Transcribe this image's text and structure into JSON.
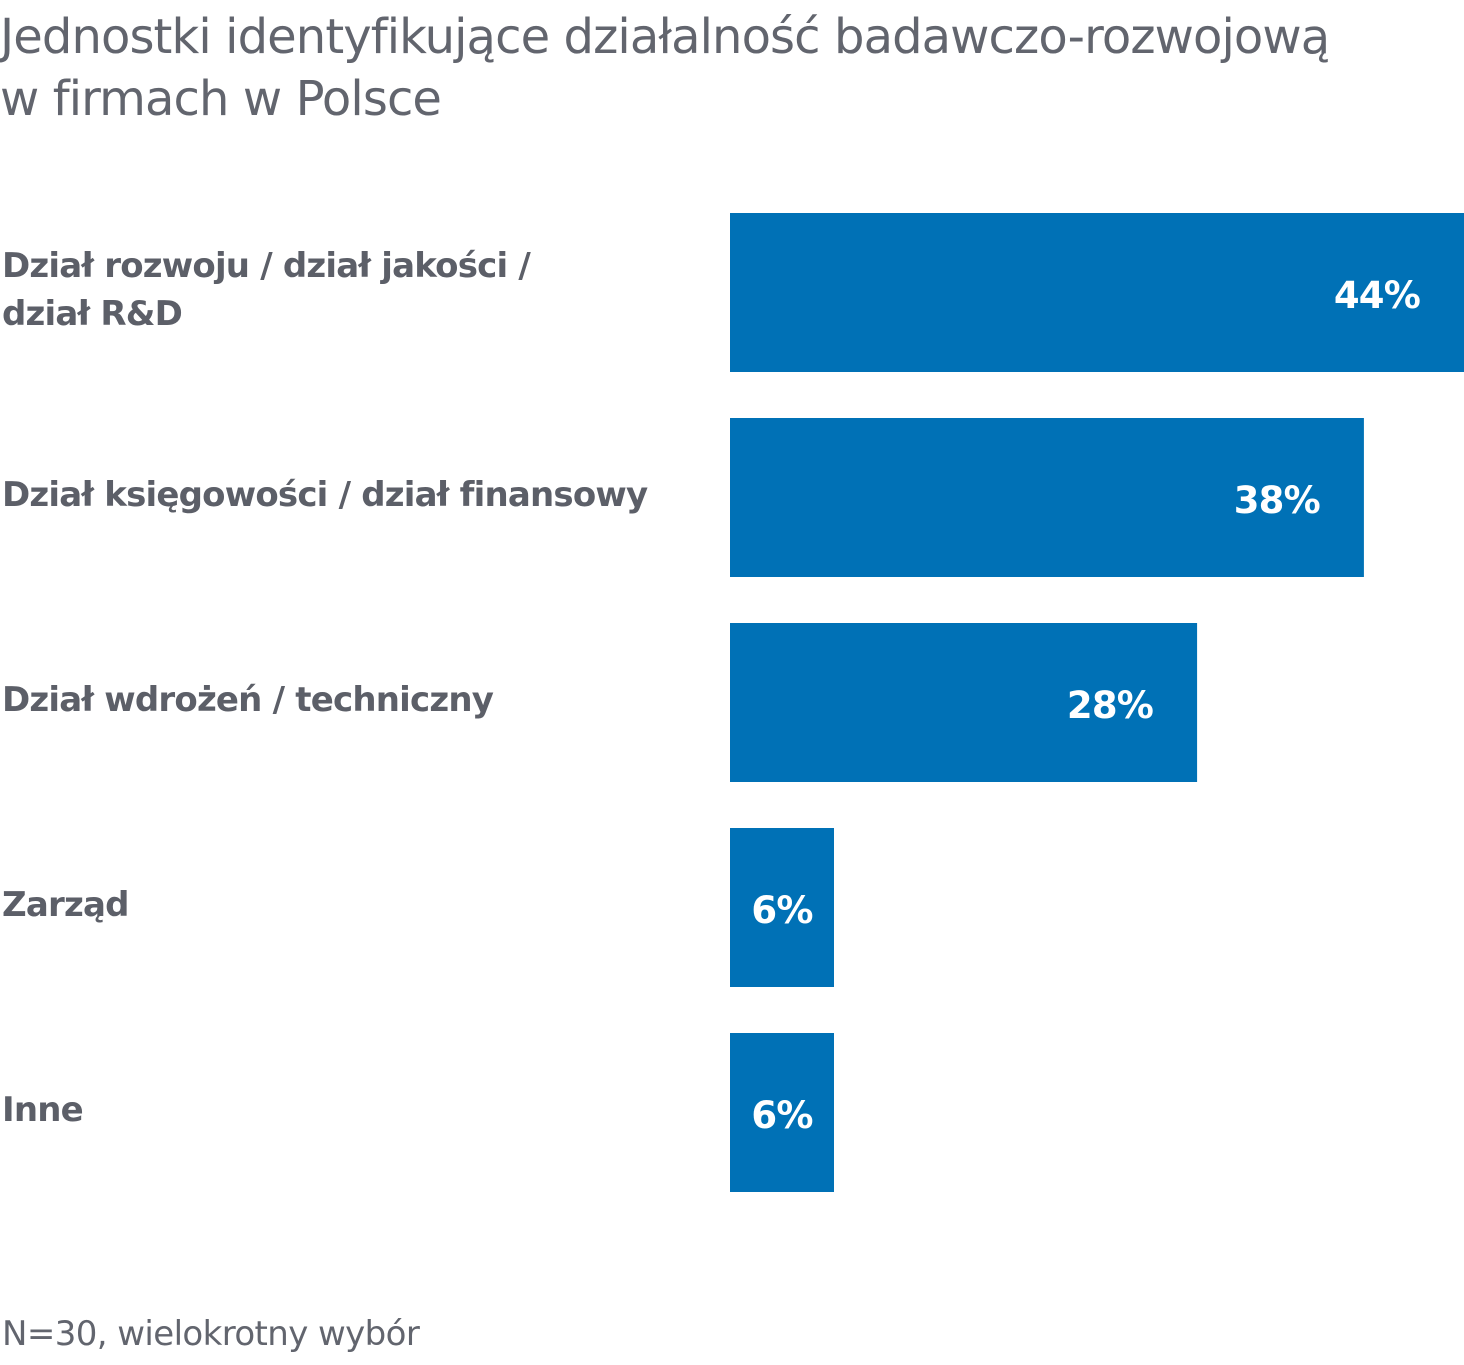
{
  "chart_data": {
    "type": "bar",
    "orientation": "horizontal",
    "title_lines": [
      "Jednostki identyfikujące działalność badawczo-rozwojową",
      "w firmach w Polsce"
    ],
    "categories": [
      [
        "Dział rozwoju / dział jakości /",
        "dział R&D"
      ],
      [
        "Dział księgowości / dział finansowy"
      ],
      [
        "Dział wdrożeń / techniczny"
      ],
      [
        "Zarząd"
      ],
      [
        "Inne"
      ]
    ],
    "values": [
      44,
      38,
      28,
      6,
      6
    ],
    "value_labels": [
      "44%",
      "38%",
      "28%",
      "6%",
      "6%"
    ],
    "unit": "%",
    "xlim": [
      0,
      44
    ],
    "grid": false,
    "legend": "none",
    "bar_color": "#0071b6",
    "label_color": "#ffffff",
    "footnote": "N=30, wielokrotny wybór"
  }
}
